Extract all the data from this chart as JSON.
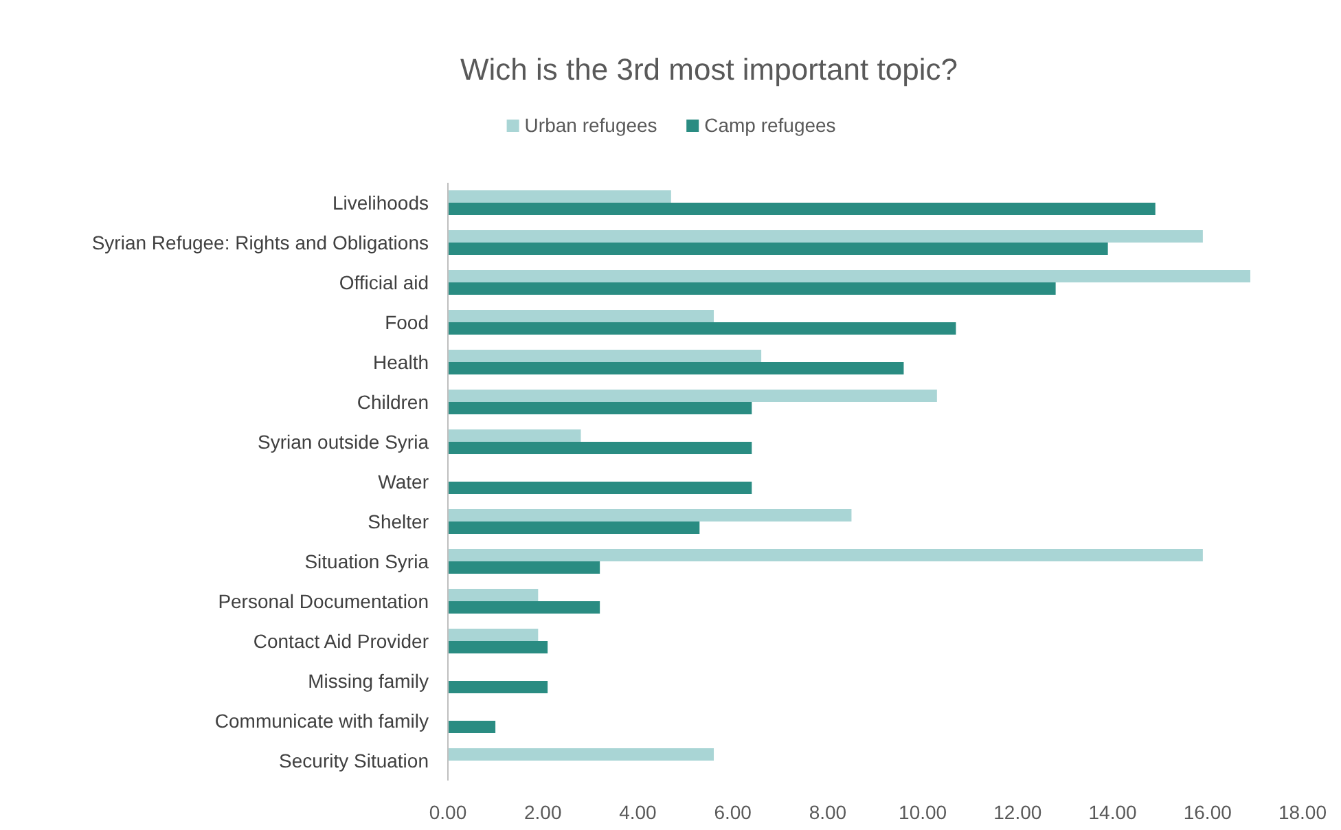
{
  "chart_data": {
    "type": "bar",
    "orientation": "horizontal",
    "title": "Wich is the 3rd most important topic?",
    "categories": [
      "Livelihoods",
      "Syrian Refugee: Rights and Obligations",
      "Official aid",
      "Food",
      "Health",
      "Children",
      "Syrian outside Syria",
      "Water",
      "Shelter",
      "Situation Syria",
      "Personal Documentation",
      "Contact Aid Provider",
      "Missing family",
      "Communicate with family",
      "Security Situation"
    ],
    "series": [
      {
        "name": "Urban refugees",
        "color": "#a9d5d5",
        "values": [
          4.7,
          15.9,
          16.9,
          5.6,
          6.6,
          10.3,
          2.8,
          null,
          8.5,
          15.9,
          1.9,
          1.9,
          null,
          null,
          5.6
        ]
      },
      {
        "name": "Camp refugees",
        "color": "#2a8c82",
        "values": [
          14.9,
          13.9,
          12.8,
          10.7,
          9.6,
          6.4,
          6.4,
          6.4,
          5.3,
          3.2,
          3.2,
          2.1,
          2.1,
          1.0,
          null
        ]
      }
    ],
    "xlim": [
      0,
      18
    ],
    "xticks": [
      {
        "value": 0,
        "label": "0.00"
      },
      {
        "value": 2,
        "label": "2.00"
      },
      {
        "value": 4,
        "label": "4.00"
      },
      {
        "value": 6,
        "label": "6.00"
      },
      {
        "value": 8,
        "label": "8.00"
      },
      {
        "value": 10,
        "label": "10.00"
      },
      {
        "value": 12,
        "label": "12.00"
      },
      {
        "value": 14,
        "label": "14.00"
      },
      {
        "value": 16,
        "label": "16.00"
      },
      {
        "value": 18,
        "label": "18.00"
      }
    ],
    "grid": false,
    "legend": "top"
  }
}
